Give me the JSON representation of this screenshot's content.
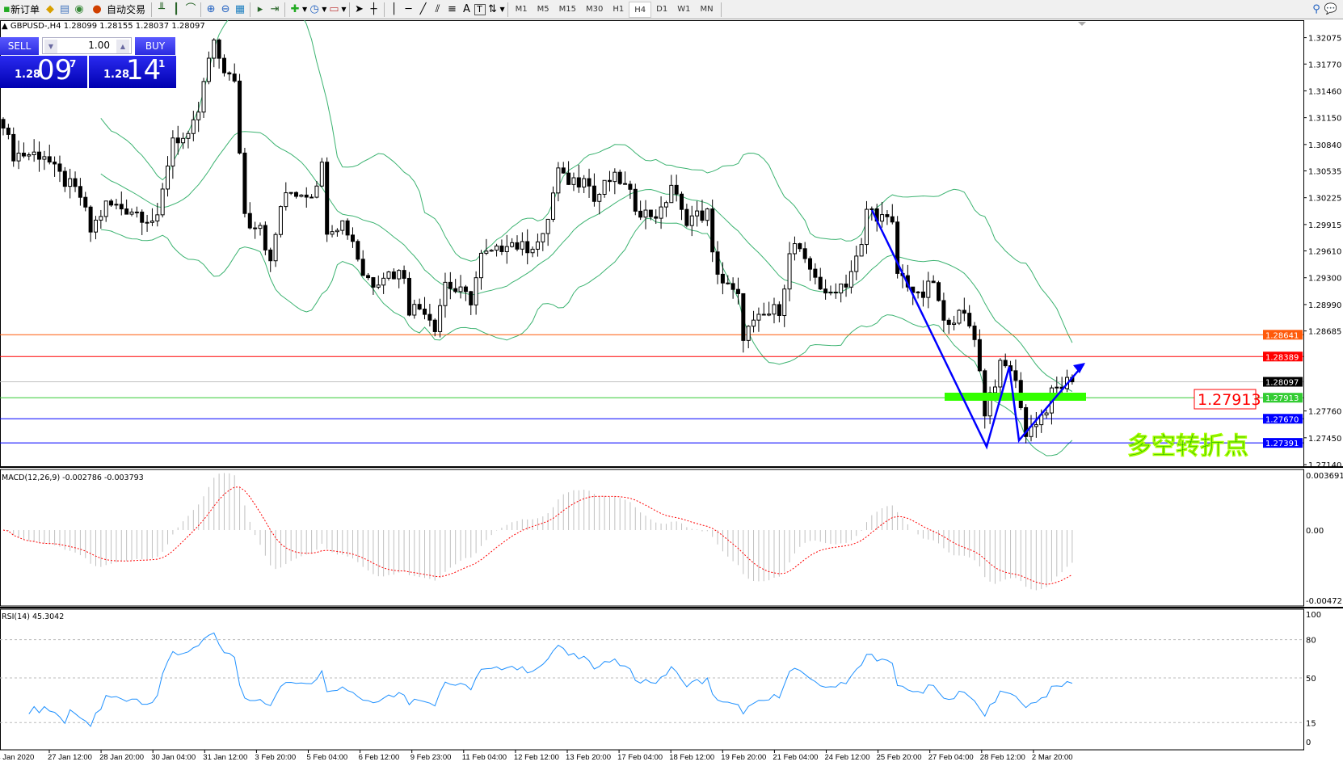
{
  "toolbar": {
    "new_order": "新订单",
    "auto_trading": "自动交易",
    "timeframes": [
      "M1",
      "M5",
      "M15",
      "M30",
      "H1",
      "H4",
      "D1",
      "W1",
      "MN"
    ],
    "active_timeframe": "H4",
    "text_tool": "A",
    "label_tool": "T"
  },
  "chart": {
    "header": "GBPUSD-,H4  1.28099 1.28155 1.28037 1.28097",
    "symbol": "GBPUSD-",
    "timeframe": "H4",
    "ohlc": {
      "open": "1.28099",
      "high": "1.28155",
      "low": "1.28037",
      "close": "1.28097"
    }
  },
  "trade_panel": {
    "sell_label": "SELL",
    "buy_label": "BUY",
    "lot": "1.00",
    "sell_price": {
      "prefix": "1.28",
      "big": "09",
      "pip": "7"
    },
    "buy_price": {
      "prefix": "1.28",
      "big": "14",
      "pip": "1"
    }
  },
  "price_axis": {
    "ticks": [
      "1.32075",
      "1.31770",
      "1.31460",
      "1.31150",
      "1.30840",
      "1.30535",
      "1.30225",
      "1.29915",
      "1.29610",
      "1.29300",
      "1.28990",
      "1.28685",
      "1.27760",
      "1.27450",
      "1.27140"
    ],
    "range": [
      1.2714,
      1.32075
    ]
  },
  "levels": [
    {
      "price": "1.28641",
      "color": "#ff5a0a"
    },
    {
      "price": "1.28389",
      "color": "#ff0000"
    },
    {
      "price": "1.28097",
      "color": "#000000",
      "line": "#c0c0c0"
    },
    {
      "price": "1.27913",
      "color": "#33cc33"
    },
    {
      "price": "1.27670",
      "color": "#0000ff"
    },
    {
      "price": "1.27391",
      "color": "#0000ff"
    }
  ],
  "annotations": {
    "price_label": "1.27913",
    "turning_point": "多空转折点",
    "zone_color": "#33ff00",
    "arrow_color": "#0000ff"
  },
  "price_path": [
    [
      0,
      1.3103
    ],
    [
      2,
      1.3073
    ],
    [
      8,
      1.3073
    ],
    [
      10,
      1.3053
    ],
    [
      15,
      1.3024
    ],
    [
      17,
      1.2984
    ],
    [
      20,
      1.3014
    ],
    [
      25,
      1.3009
    ],
    [
      30,
      1.2994
    ],
    [
      32,
      1.3063
    ],
    [
      33,
      1.3093
    ],
    [
      36,
      1.3088
    ],
    [
      38,
      1.3122
    ],
    [
      40,
      1.3182
    ],
    [
      41,
      1.3197
    ],
    [
      43,
      1.3172
    ],
    [
      45,
      1.3152
    ],
    [
      47,
      1.3004
    ],
    [
      48,
      1.2994
    ],
    [
      50,
      1.2994
    ],
    [
      52,
      1.2944
    ],
    [
      54,
      1.3014
    ],
    [
      56,
      1.3029
    ],
    [
      60,
      1.3029
    ],
    [
      62,
      1.3058
    ],
    [
      63,
      1.2989
    ],
    [
      66,
      1.2994
    ],
    [
      68,
      1.2974
    ],
    [
      70,
      1.2935
    ],
    [
      72,
      1.2925
    ],
    [
      74,
      1.2935
    ],
    [
      78,
      1.2935
    ],
    [
      79,
      1.2895
    ],
    [
      82,
      1.2895
    ],
    [
      84,
      1.2875
    ],
    [
      86,
      1.2925
    ],
    [
      88,
      1.2915
    ],
    [
      91,
      1.2905
    ],
    [
      93,
      1.2954
    ],
    [
      96,
      1.2959
    ],
    [
      98,
      1.2974
    ],
    [
      101,
      1.2964
    ],
    [
      105,
      1.2974
    ],
    [
      108,
      1.3053
    ],
    [
      109,
      1.3043
    ],
    [
      112,
      1.3043
    ],
    [
      113,
      1.3053
    ],
    [
      115,
      1.3019
    ],
    [
      118,
      1.3043
    ],
    [
      120,
      1.3043
    ],
    [
      123,
      1.3014
    ],
    [
      125,
      1.3004
    ],
    [
      128,
      1.3004
    ],
    [
      130,
      1.3038
    ],
    [
      132,
      1.3004
    ],
    [
      133,
      1.2999
    ],
    [
      137,
      1.3004
    ],
    [
      138,
      1.2954
    ],
    [
      140,
      1.2925
    ],
    [
      143,
      1.2905
    ],
    [
      144,
      1.2865
    ],
    [
      146,
      1.2875
    ],
    [
      148,
      1.2885
    ],
    [
      151,
      1.2895
    ],
    [
      153,
      1.2954
    ],
    [
      154,
      1.2969
    ],
    [
      156,
      1.2944
    ],
    [
      158,
      1.2935
    ],
    [
      160,
      1.2905
    ],
    [
      162,
      1.292
    ],
    [
      164,
      1.2925
    ],
    [
      167,
      1.2964
    ],
    [
      168,
      1.3009
    ],
    [
      170,
      1.3004
    ],
    [
      173,
      1.2989
    ],
    [
      174,
      1.2935
    ],
    [
      176,
      1.2925
    ],
    [
      178,
      1.2905
    ],
    [
      179,
      1.291
    ],
    [
      181,
      1.2925
    ],
    [
      183,
      1.2875
    ],
    [
      184,
      1.2885
    ],
    [
      187,
      1.2885
    ],
    [
      189,
      1.2865
    ],
    [
      191,
      1.2776
    ],
    [
      192,
      1.2796
    ],
    [
      194,
      1.2826
    ],
    [
      196,
      1.2826
    ],
    [
      198,
      1.2786
    ],
    [
      199,
      1.2747
    ],
    [
      201,
      1.2766
    ],
    [
      203,
      1.2776
    ],
    [
      204,
      1.2796
    ],
    [
      206,
      1.2806
    ],
    [
      208,
      1.28097
    ]
  ],
  "indicators": {
    "macd": {
      "label": "MACD(12,26,9) -0.002786 -0.003793",
      "ticks": [
        "0.003691",
        "0.00",
        "-0.004721"
      ],
      "range": [
        -0.004721,
        0.003691
      ]
    },
    "rsi": {
      "label": "RSI(14) 45.3042",
      "ticks": [
        "100",
        "80",
        "50",
        "15",
        "0"
      ],
      "levels": [
        80,
        50,
        15
      ]
    }
  },
  "time_axis": [
    "24 Jan 2020",
    "27 Jan 12:00",
    "28 Jan 20:00",
    "30 Jan 04:00",
    "31 Jan 12:00",
    "3 Feb 20:00",
    "5 Feb 04:00",
    "6 Feb 12:00",
    "9 Feb 23:00",
    "11 Feb 04:00",
    "12 Feb 12:00",
    "13 Feb 20:00",
    "17 Feb 04:00",
    "18 Feb 12:00",
    "19 Feb 20:00",
    "21 Feb 04:00",
    "24 Feb 12:00",
    "25 Feb 20:00",
    "27 Feb 04:00",
    "28 Feb 12:00",
    "2 Mar 20:00"
  ]
}
